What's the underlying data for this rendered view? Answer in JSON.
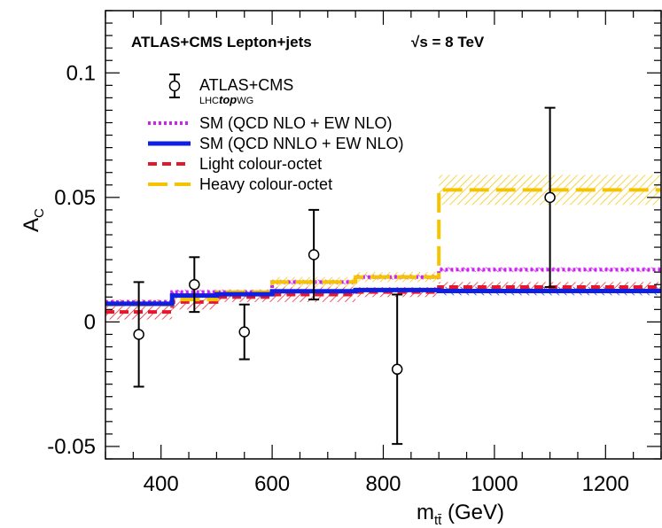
{
  "chart_data": {
    "type": "scatter",
    "header": {
      "experiment": "ATLAS+CMS Lepton+jets",
      "energy": "√s = 8 TeV"
    },
    "xlabel": "m",
    "xlabel_sub": "tt̄",
    "xlabel_unit": " (GeV)",
    "ylabel": "A",
    "ylabel_sub": "C",
    "xlim": [
      300,
      1300
    ],
    "ylim": [
      -0.055,
      0.125
    ],
    "x_ticks": [
      400,
      600,
      800,
      1000,
      1200
    ],
    "x_tick_labels": [
      "400",
      "600",
      "800",
      "1000",
      "1200"
    ],
    "y_ticks": [
      -0.05,
      0,
      0.05,
      0.1
    ],
    "y_tick_labels": [
      "-0.05",
      "0",
      "0.05",
      "0.1"
    ],
    "bin_edges": [
      300,
      420,
      500,
      600,
      750,
      900,
      1300
    ],
    "data": {
      "name": "ATLAS+CMS",
      "sublabel_prefix": "LHC",
      "sublabel_italic": "top",
      "sublabel_suffix": "WG",
      "x": [
        360,
        460,
        550,
        675,
        825,
        1100
      ],
      "y": [
        -0.005,
        0.015,
        -0.004,
        0.027,
        -0.019,
        0.05
      ],
      "y_err_low": [
        0.021,
        0.011,
        0.011,
        0.018,
        0.03,
        0.036
      ],
      "y_err_high": [
        0.021,
        0.011,
        0.011,
        0.018,
        0.03,
        0.036
      ]
    },
    "series": [
      {
        "name": "Light colour-octet",
        "color": "#e8162d",
        "style": "dashed",
        "values": [
          0.004,
          0.008,
          0.01,
          0.011,
          0.012,
          0.014
        ],
        "band_low": [
          0.001,
          0.005,
          0.008,
          0.008,
          0.01,
          0.012
        ],
        "band_high": [
          0.007,
          0.011,
          0.012,
          0.014,
          0.014,
          0.016
        ]
      },
      {
        "name": "SM (QCD NLO + EW NLO)",
        "color": "#cc22ee",
        "style": "dotted",
        "values": [
          0.008,
          0.012,
          0.012,
          0.016,
          0.018,
          0.021
        ],
        "band_low": [
          0.007,
          0.011,
          0.011,
          0.015,
          0.017,
          0.02
        ],
        "band_high": [
          0.009,
          0.013,
          0.013,
          0.017,
          0.019,
          0.022
        ]
      },
      {
        "name": "Heavy colour-octet",
        "color": "#f5c400",
        "style": "longdash",
        "values": [
          0.007,
          0.009,
          0.012,
          0.016,
          0.018,
          0.053
        ],
        "band_low": [
          0.006,
          0.008,
          0.011,
          0.014,
          0.016,
          0.047
        ],
        "band_high": [
          0.009,
          0.011,
          0.013,
          0.018,
          0.02,
          0.059
        ]
      },
      {
        "name": "SM (QCD NNLO + EW NLO)",
        "color": "#1020e0",
        "style": "solid",
        "values": [
          0.0073,
          0.0106,
          0.0111,
          0.0123,
          0.0128,
          0.0124
        ],
        "band_low": [
          0.0066,
          0.0099,
          0.0104,
          0.0115,
          0.0119,
          0.0107
        ],
        "band_high": [
          0.008,
          0.0113,
          0.0118,
          0.0131,
          0.0137,
          0.0141
        ]
      }
    ],
    "legend_order": [
      "SM (QCD NLO + EW NLO)",
      "SM (QCD NNLO + EW NLO)",
      "Light colour-octet",
      "Heavy colour-octet"
    ]
  }
}
